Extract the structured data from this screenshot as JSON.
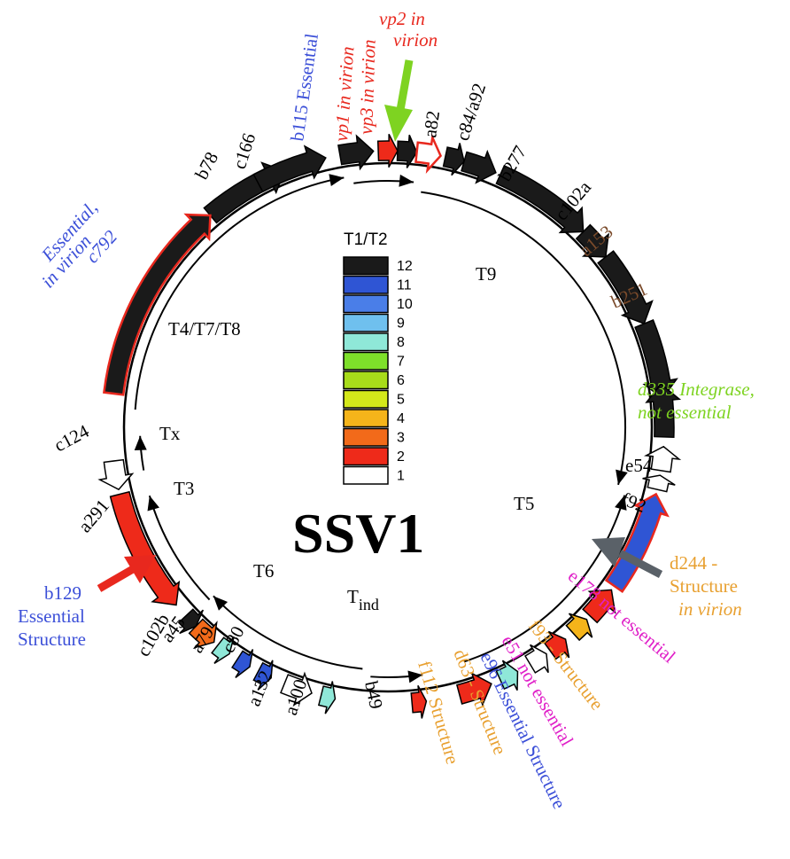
{
  "title": "SSV1",
  "colors": {
    "black": "#1a1a1a",
    "blue_label": "#3b4fd8",
    "red_label": "#e8281e",
    "green_label": "#7ed321",
    "brown_label": "#7a4a2a",
    "orange_label": "#e8a030",
    "magenta_label": "#e020c8",
    "gray_arrow": "#5a6168"
  },
  "legend": {
    "title": "T1/T2",
    "levels": [
      {
        "value": "12",
        "color": "#1a1a1a"
      },
      {
        "value": "11",
        "color": "#2f55d4"
      },
      {
        "value": "10",
        "color": "#4a7ee8"
      },
      {
        "value": "9",
        "color": "#6fc0ee"
      },
      {
        "value": "8",
        "color": "#8fe8d8"
      },
      {
        "value": "7",
        "color": "#7ee02a"
      },
      {
        "value": "6",
        "color": "#a8dc1a"
      },
      {
        "value": "5",
        "color": "#d4e81a"
      },
      {
        "value": "4",
        "color": "#f5b41a"
      },
      {
        "value": "3",
        "color": "#f26a1a"
      },
      {
        "value": "2",
        "color": "#ee2a1a"
      },
      {
        "value": "1",
        "color": "#ffffff"
      }
    ]
  },
  "transcripts": [
    {
      "id": "t9",
      "text": "T9"
    },
    {
      "id": "t4",
      "text": "T4/T7/T8"
    },
    {
      "id": "tx",
      "text": "Tx"
    },
    {
      "id": "t3",
      "text": "T3"
    },
    {
      "id": "t5",
      "text": "T5"
    },
    {
      "id": "t6",
      "text": "T6"
    },
    {
      "id": "tind",
      "text": "T",
      "sub": "ind"
    }
  ],
  "genes": [
    {
      "id": "b78",
      "text": "b78"
    },
    {
      "id": "c166",
      "text": "c166"
    },
    {
      "id": "b115",
      "text": "b115 Essential"
    },
    {
      "id": "vp1",
      "text": "vp1 in virion"
    },
    {
      "id": "vp3",
      "text": "vp3 in virion"
    },
    {
      "id": "vp2a",
      "text": "vp2 in"
    },
    {
      "id": "vp2b",
      "text": "virion"
    },
    {
      "id": "a82",
      "text": "a82"
    },
    {
      "id": "c84",
      "text": "c84/a92"
    },
    {
      "id": "b277",
      "text": "b277"
    },
    {
      "id": "c102a",
      "text": "c102a"
    },
    {
      "id": "a153",
      "text": "a153"
    },
    {
      "id": "b251",
      "text": "b251"
    },
    {
      "id": "d335a",
      "text": "d335 Integrase,"
    },
    {
      "id": "d335b",
      "text": "not essential"
    },
    {
      "id": "e54",
      "text": "e54"
    },
    {
      "id": "f92",
      "text": "f92"
    },
    {
      "id": "d244a",
      "text": "d244 -"
    },
    {
      "id": "d244b",
      "text": "Structure"
    },
    {
      "id": "d244c",
      "text": "in virion"
    },
    {
      "id": "e178",
      "text": "e178 not essential"
    },
    {
      "id": "f93",
      "text": "f93 - Structure"
    },
    {
      "id": "e51",
      "text": "e51 not essential"
    },
    {
      "id": "e96",
      "text": "e96 Essential Structure"
    },
    {
      "id": "d63",
      "text": "d63 - Structure"
    },
    {
      "id": "f112",
      "text": "f112 Structure"
    },
    {
      "id": "b49",
      "text": "b49"
    },
    {
      "id": "a100",
      "text": "a100"
    },
    {
      "id": "a132",
      "text": "a132"
    },
    {
      "id": "c80",
      "text": "c80"
    },
    {
      "id": "a79",
      "text": "a79"
    },
    {
      "id": "a45",
      "text": "a45"
    },
    {
      "id": "c102b",
      "text": "c102b"
    },
    {
      "id": "b129a",
      "text": "b129"
    },
    {
      "id": "b129b",
      "text": "Essential"
    },
    {
      "id": "b129c",
      "text": "Structure"
    },
    {
      "id": "a291",
      "text": "a291"
    },
    {
      "id": "c124",
      "text": "c124"
    },
    {
      "id": "c792a",
      "text": "c792"
    },
    {
      "id": "c792b",
      "text": "Essential,"
    },
    {
      "id": "c792c",
      "text": "in virion"
    }
  ]
}
